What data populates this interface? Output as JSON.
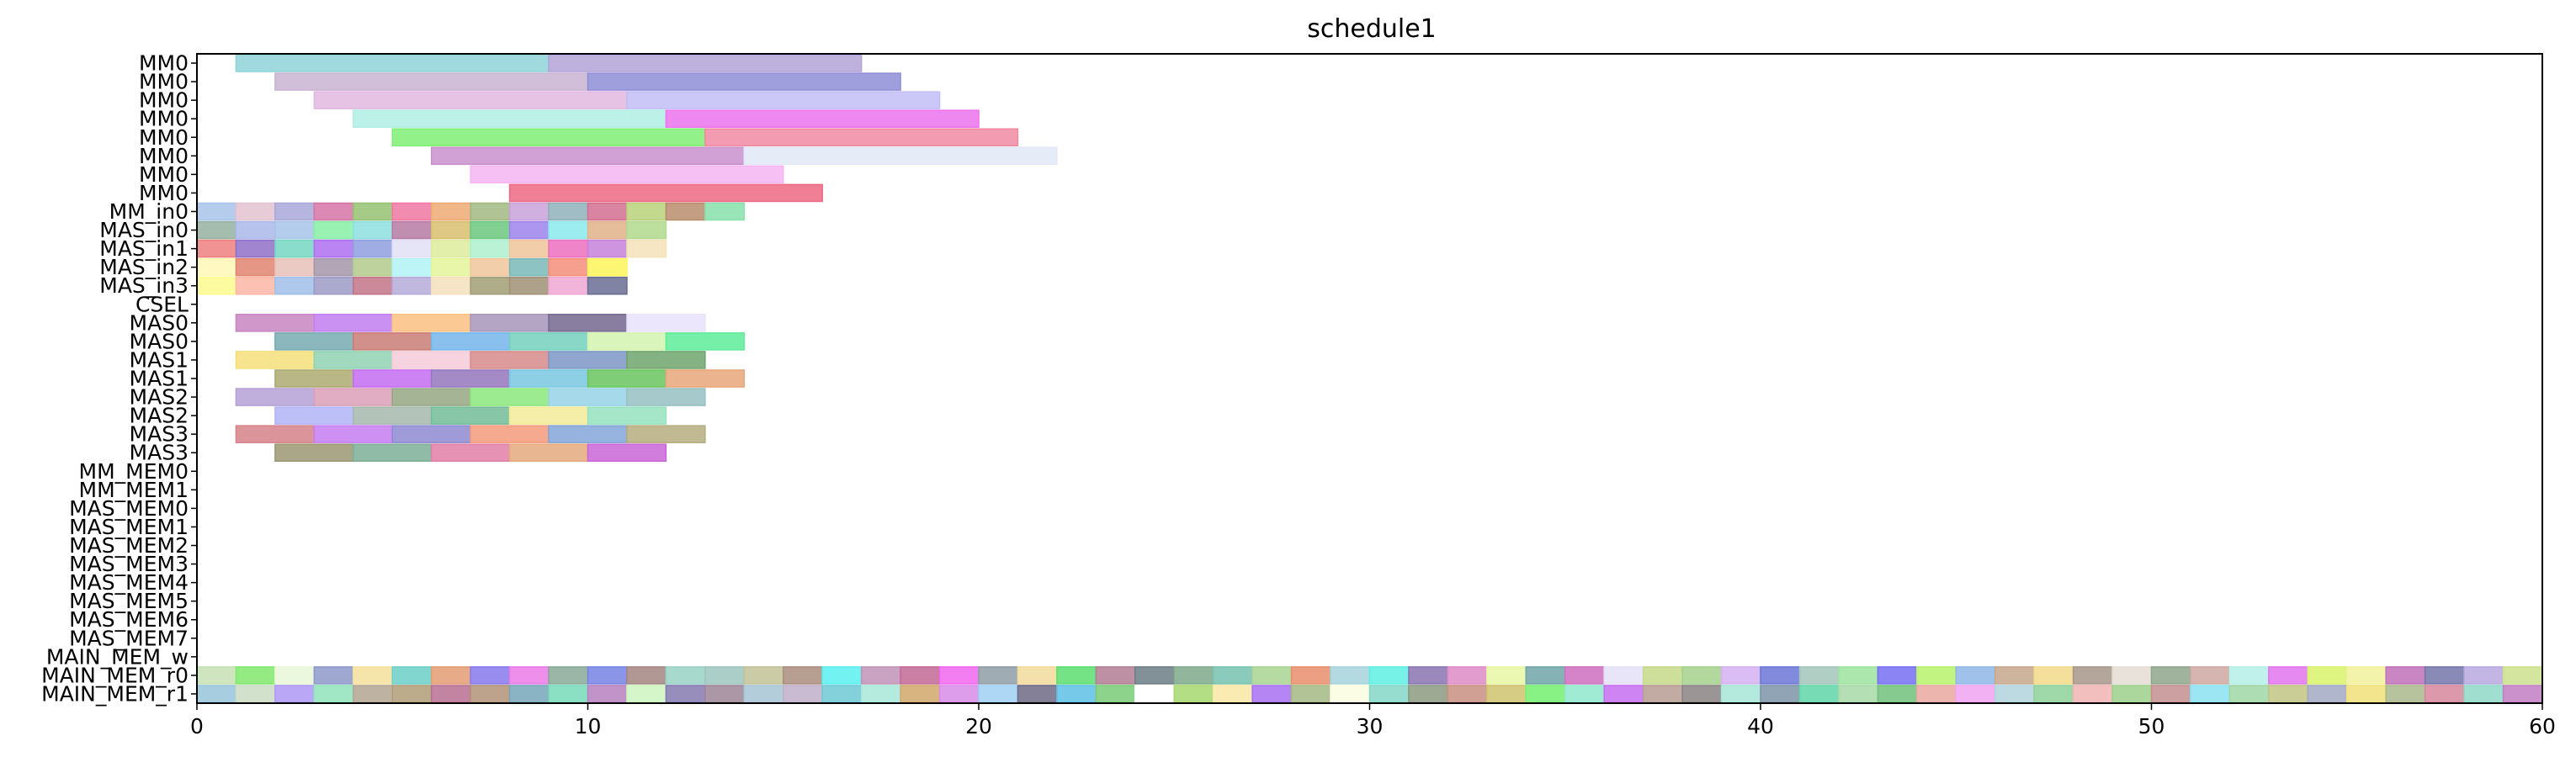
{
  "chart_data": {
    "type": "gantt",
    "title": "schedule1",
    "xlim": [
      0,
      60
    ],
    "x_ticks": [
      0,
      10,
      20,
      30,
      40,
      50,
      60
    ],
    "rows": [
      "MM0",
      "MM0",
      "MM0",
      "MM0",
      "MM0",
      "MM0",
      "MM0",
      "MM0",
      "MM_in0",
      "MAS_in0",
      "MAS_in1",
      "MAS_in2",
      "MAS_in3",
      "CSEL",
      "MAS0",
      "MAS0",
      "MAS1",
      "MAS1",
      "MAS2",
      "MAS2",
      "MAS3",
      "MAS3",
      "MM_MEM0",
      "MM_MEM1",
      "MAS_MEM0",
      "MAS_MEM1",
      "MAS_MEM2",
      "MAS_MEM3",
      "MAS_MEM4",
      "MAS_MEM5",
      "MAS_MEM6",
      "MAS_MEM7",
      "MAIN_MEM_w",
      "MAIN_MEM_r0",
      "MAIN_MEM_r1"
    ],
    "tasks": [
      [
        [
          1,
          9,
          "#8fd3d8"
        ],
        [
          9,
          17,
          "#b4a3d8"
        ]
      ],
      [
        [
          2,
          10,
          "#c9b3d2"
        ],
        [
          10,
          18,
          "#8f8ed8"
        ]
      ],
      [
        [
          3,
          11,
          "#e2b7e0"
        ],
        [
          11,
          19,
          "#c2bdf6"
        ]
      ],
      [
        [
          4,
          12,
          "#b0eee3"
        ],
        [
          12,
          20,
          "#ec72ee"
        ]
      ],
      [
        [
          5,
          13,
          "#80ee76"
        ],
        [
          13,
          21,
          "#f08aa3"
        ]
      ],
      [
        [
          6,
          14,
          "#c98fcc"
        ],
        [
          14,
          22,
          "#e2e8f7"
        ]
      ],
      [
        [
          7,
          15,
          "#f6b5f2"
        ]
      ],
      [
        [
          8,
          16,
          "#ed6983"
        ]
      ],
      [
        [
          0,
          1,
          "#a9c3ea"
        ],
        [
          1,
          2,
          "#e3c3d0"
        ],
        [
          2,
          3,
          "#a8a8d9"
        ],
        [
          3,
          4,
          "#d674a6"
        ],
        [
          4,
          5,
          "#95c272"
        ],
        [
          5,
          6,
          "#ef77a2"
        ],
        [
          6,
          7,
          "#eeaa73"
        ],
        [
          7,
          8,
          "#a1b883"
        ],
        [
          8,
          9,
          "#c8a2d9"
        ],
        [
          9,
          10,
          "#8fb0ba"
        ],
        [
          10,
          11,
          "#d26e8f"
        ],
        [
          11,
          12,
          "#b9d27a"
        ],
        [
          12,
          13,
          "#b98d6c"
        ],
        [
          13,
          14,
          "#88e1ab"
        ]
      ],
      [
        [
          0,
          1,
          "#95b1a0"
        ],
        [
          1,
          2,
          "#aab9e9"
        ],
        [
          2,
          3,
          "#a7c4ea"
        ],
        [
          3,
          4,
          "#87eea5"
        ],
        [
          4,
          5,
          "#8ddfe0"
        ],
        [
          5,
          6,
          "#b47aa3"
        ],
        [
          6,
          7,
          "#d9bd6f"
        ],
        [
          7,
          8,
          "#6bc87f"
        ],
        [
          8,
          9,
          "#9c83ec"
        ],
        [
          9,
          10,
          "#8aeaec"
        ],
        [
          10,
          11,
          "#e2b18a"
        ],
        [
          11,
          12,
          "#b2d98d"
        ]
      ],
      [
        [
          0,
          1,
          "#ef8080"
        ],
        [
          1,
          2,
          "#9070c8"
        ],
        [
          2,
          3,
          "#75d6c2"
        ],
        [
          3,
          4,
          "#ae6ef0"
        ],
        [
          4,
          5,
          "#8f9fe1"
        ],
        [
          5,
          6,
          "#e2dff6"
        ],
        [
          6,
          7,
          "#dcec9c"
        ],
        [
          7,
          8,
          "#aef0cf"
        ],
        [
          8,
          9,
          "#f0c49a"
        ],
        [
          9,
          10,
          "#ec6fbf"
        ],
        [
          10,
          11,
          "#c581da"
        ],
        [
          11,
          12,
          "#f4e2b8"
        ]
      ],
      [
        [
          0,
          1,
          "#fdf8b6"
        ],
        [
          1,
          2,
          "#e0846f"
        ],
        [
          2,
          3,
          "#e7c1b8"
        ],
        [
          3,
          4,
          "#a496a9"
        ],
        [
          4,
          5,
          "#b3ca8c"
        ],
        [
          5,
          6,
          "#b1f2f5"
        ],
        [
          6,
          7,
          "#e3f59a"
        ],
        [
          7,
          8,
          "#f0c59c"
        ],
        [
          8,
          9,
          "#79b8b9"
        ],
        [
          9,
          10,
          "#f48e7a"
        ],
        [
          10,
          11,
          "#fdf55a"
        ]
      ],
      [
        [
          0,
          1,
          "#fdfa8f"
        ],
        [
          1,
          2,
          "#fcb6a6"
        ],
        [
          2,
          3,
          "#a0bfe8"
        ],
        [
          3,
          4,
          "#9d9ac5"
        ],
        [
          4,
          5,
          "#c27487"
        ],
        [
          5,
          6,
          "#b6acdb"
        ],
        [
          6,
          7,
          "#f5dfbd"
        ],
        [
          7,
          8,
          "#a19d76"
        ],
        [
          8,
          9,
          "#a09076"
        ],
        [
          9,
          10,
          "#f0a8d2"
        ],
        [
          10,
          11,
          "#6a6d94"
        ]
      ],
      [],
      [
        [
          1,
          3,
          "#c885c2"
        ],
        [
          3,
          5,
          "#c27ef0"
        ],
        [
          5,
          7,
          "#fac181"
        ],
        [
          7,
          9,
          "#a695b9"
        ],
        [
          9,
          11,
          "#76678f"
        ],
        [
          11,
          13,
          "#e8e2fb"
        ]
      ],
      [
        [
          2,
          4,
          "#76abb0"
        ],
        [
          4,
          6,
          "#c97d74"
        ],
        [
          6,
          8,
          "#74b5ea"
        ],
        [
          8,
          10,
          "#73d0bd"
        ],
        [
          10,
          12,
          "#d3f3b0"
        ],
        [
          12,
          14,
          "#5eec9a"
        ]
      ],
      [
        [
          1,
          3,
          "#f4e07a"
        ],
        [
          3,
          5,
          "#8fd2b2"
        ],
        [
          5,
          7,
          "#f5cbd8"
        ],
        [
          7,
          9,
          "#d88a89"
        ],
        [
          9,
          11,
          "#7d97c6"
        ],
        [
          11,
          13,
          "#6fa46c"
        ]
      ],
      [
        [
          2,
          4,
          "#abaa70"
        ],
        [
          4,
          6,
          "#c46cf1"
        ],
        [
          6,
          8,
          "#9477be"
        ],
        [
          8,
          10,
          "#79c8e2"
        ],
        [
          10,
          12,
          "#69c65f"
        ],
        [
          12,
          14,
          "#e8a77a"
        ]
      ],
      [
        [
          1,
          3,
          "#b5a0d6"
        ],
        [
          3,
          5,
          "#db9fb7"
        ],
        [
          5,
          7,
          "#94a783"
        ],
        [
          7,
          9,
          "#8ce87e"
        ],
        [
          9,
          11,
          "#97d3e8"
        ],
        [
          11,
          13,
          "#96c0c2"
        ]
      ],
      [
        [
          2,
          4,
          "#b1b4f7"
        ],
        [
          4,
          6,
          "#a6b9ad"
        ],
        [
          6,
          8,
          "#72bc98"
        ],
        [
          8,
          10,
          "#f3eb99"
        ],
        [
          10,
          12,
          "#95e2be"
        ]
      ],
      [
        [
          1,
          3,
          "#d58388"
        ],
        [
          3,
          5,
          "#c67ef1"
        ],
        [
          5,
          7,
          "#8d8ad1"
        ],
        [
          7,
          9,
          "#f39b7d"
        ],
        [
          9,
          11,
          "#82a6d8"
        ],
        [
          11,
          13,
          "#b5ad7f"
        ]
      ],
      [
        [
          2,
          4,
          "#9b9873"
        ],
        [
          4,
          6,
          "#7daf96"
        ],
        [
          6,
          8,
          "#e07fa8"
        ],
        [
          8,
          10,
          "#e5a97f"
        ],
        [
          10,
          12,
          "#c966d7"
        ]
      ],
      [],
      [],
      [],
      [],
      [],
      [],
      [],
      [],
      [],
      [],
      [],
      [
        [
          0,
          1,
          "#c5e1b4"
        ],
        [
          1,
          2,
          "#80e86c"
        ],
        [
          2,
          3,
          "#e8f7d8"
        ],
        [
          3,
          4,
          "#8e99c9"
        ],
        [
          4,
          5,
          "#f5e19c"
        ],
        [
          5,
          6,
          "#6ccfc8"
        ],
        [
          6,
          7,
          "#e39d72"
        ],
        [
          7,
          8,
          "#8679ec"
        ],
        [
          8,
          9,
          "#ea7be8"
        ],
        [
          9,
          10,
          "#89a996"
        ],
        [
          10,
          11,
          "#7683e4"
        ],
        [
          11,
          12,
          "#a58683"
        ],
        [
          12,
          13,
          "#99d2c4"
        ],
        [
          13,
          14,
          "#9ec5be"
        ],
        [
          14,
          15,
          "#c2c296"
        ],
        [
          15,
          16,
          "#a98d7e"
        ],
        [
          16,
          17,
          "#59f0ee"
        ],
        [
          17,
          18,
          "#c192b7"
        ],
        [
          18,
          19,
          "#c36995"
        ],
        [
          19,
          20,
          "#f067f0"
        ],
        [
          20,
          21,
          "#8f9da6"
        ],
        [
          21,
          22,
          "#f2db9b"
        ],
        [
          22,
          23,
          "#5bde71"
        ],
        [
          23,
          24,
          "#b17e93"
        ],
        [
          24,
          25,
          "#6c7d86"
        ],
        [
          25,
          26,
          "#7fa98b"
        ],
        [
          26,
          27,
          "#77c2b0"
        ],
        [
          27,
          28,
          "#a8d592"
        ],
        [
          28,
          29,
          "#e98e6c"
        ],
        [
          29,
          30,
          "#a6d4dc"
        ],
        [
          30,
          31,
          "#5ff0e2"
        ],
        [
          31,
          32,
          "#8a74b2"
        ],
        [
          32,
          33,
          "#de8bc6"
        ],
        [
          33,
          34,
          "#e6f7a3"
        ],
        [
          34,
          35,
          "#6fa4a8"
        ],
        [
          35,
          36,
          "#cf6fbf"
        ],
        [
          36,
          37,
          "#e5e1f7"
        ],
        [
          37,
          38,
          "#c6d88a"
        ],
        [
          38,
          39,
          "#a4d18c"
        ],
        [
          39,
          40,
          "#d4b2f0"
        ],
        [
          40,
          41,
          "#6c76d8"
        ],
        [
          41,
          42,
          "#a2c5b8"
        ],
        [
          42,
          43,
          "#9de4a0"
        ],
        [
          43,
          44,
          "#766ff2"
        ],
        [
          44,
          45,
          "#b6f26b"
        ],
        [
          45,
          46,
          "#8fb7e6"
        ],
        [
          46,
          47,
          "#c6a68c"
        ],
        [
          47,
          48,
          "#f3db8a"
        ],
        [
          48,
          49,
          "#a8978a"
        ],
        [
          49,
          50,
          "#e4ddd3"
        ],
        [
          50,
          51,
          "#8fa68b"
        ],
        [
          51,
          52,
          "#cfa7a1"
        ],
        [
          52,
          53,
          "#b5efe6"
        ],
        [
          53,
          54,
          "#e275ee"
        ],
        [
          54,
          55,
          "#d8f36c"
        ],
        [
          55,
          56,
          "#f1f19e"
        ],
        [
          56,
          57,
          "#c170b8"
        ],
        [
          57,
          58,
          "#7476a9"
        ],
        [
          58,
          59,
          "#b8a9e0"
        ],
        [
          59,
          60,
          "#cde08c"
        ]
      ],
      [
        [
          0,
          1,
          "#98c5db"
        ],
        [
          1,
          2,
          "#c9dcc3"
        ],
        [
          2,
          3,
          "#ae98f5"
        ],
        [
          3,
          4,
          "#90e3bb"
        ],
        [
          4,
          5,
          "#b3a693"
        ],
        [
          5,
          6,
          "#b09e78"
        ],
        [
          6,
          7,
          "#b76e91"
        ],
        [
          7,
          8,
          "#b19278"
        ],
        [
          8,
          9,
          "#75a7b9"
        ],
        [
          9,
          10,
          "#77d9b7"
        ],
        [
          10,
          11,
          "#b680bf"
        ],
        [
          11,
          12,
          "#cdf4bf"
        ],
        [
          12,
          13,
          "#857ab0"
        ],
        [
          13,
          14,
          "#9c8597"
        ],
        [
          14,
          15,
          "#a6c6d4"
        ],
        [
          15,
          16,
          "#c0afca"
        ],
        [
          16,
          17,
          "#6fc9d6"
        ],
        [
          17,
          18,
          "#a8e8d8"
        ],
        [
          18,
          19,
          "#d1a86a"
        ],
        [
          19,
          20,
          "#d88ce8"
        ],
        [
          20,
          21,
          "#a0d0f3"
        ],
        [
          21,
          22,
          "#6f6a86"
        ],
        [
          22,
          23,
          "#5fc0e6"
        ],
        [
          23,
          24,
          "#79cb77"
        ],
        [
          24,
          25,
          "#ffffff"
        ],
        [
          25,
          26,
          "#a7d86d"
        ],
        [
          26,
          27,
          "#f9e8a5"
        ],
        [
          27,
          28,
          "#a970f2"
        ],
        [
          28,
          29,
          "#a4b883"
        ],
        [
          29,
          30,
          "#fafde1"
        ],
        [
          30,
          31,
          "#84d7c7"
        ],
        [
          31,
          32,
          "#8c9a80"
        ],
        [
          32,
          33,
          "#c98f81"
        ],
        [
          33,
          34,
          "#cfc36e"
        ],
        [
          34,
          35,
          "#73f06f"
        ],
        [
          35,
          36,
          "#8fe7cd"
        ],
        [
          36,
          37,
          "#c56ef0"
        ],
        [
          37,
          38,
          "#b79c92"
        ],
        [
          38,
          39,
          "#8a8382"
        ],
        [
          39,
          40,
          "#a7e5d7"
        ],
        [
          40,
          41,
          "#7e94a8"
        ],
        [
          41,
          42,
          "#5fd6a8"
        ],
        [
          42,
          43,
          "#a7d8a7"
        ],
        [
          43,
          44,
          "#71c17b"
        ],
        [
          44,
          45,
          "#e9a8a0"
        ],
        [
          45,
          46,
          "#f0a3f1"
        ],
        [
          46,
          47,
          "#b1d4de"
        ],
        [
          47,
          48,
          "#8fd29a"
        ],
        [
          48,
          49,
          "#f0b4b3"
        ],
        [
          49,
          50,
          "#9ed08b"
        ],
        [
          50,
          51,
          "#c38f8f"
        ],
        [
          51,
          52,
          "#89e2f0"
        ],
        [
          52,
          53,
          "#9fd7a5"
        ],
        [
          53,
          54,
          "#c1c482"
        ],
        [
          54,
          55,
          "#a2a9c3"
        ],
        [
          55,
          56,
          "#f0e17a"
        ],
        [
          56,
          57,
          "#a9b98b"
        ],
        [
          57,
          58,
          "#d5879c"
        ],
        [
          58,
          59,
          "#8fd9c8"
        ],
        [
          59,
          60,
          "#c17ec3"
        ]
      ]
    ]
  }
}
